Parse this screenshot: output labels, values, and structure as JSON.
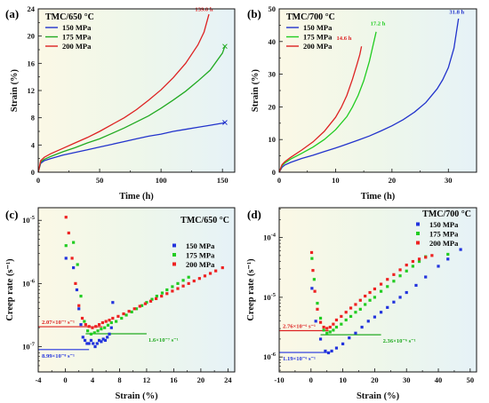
{
  "chart_data": [
    {
      "panel": "(a)",
      "type": "line",
      "title": "TMC/650 °C",
      "xlabel": "Time (h)",
      "ylabel": "Strain (%)",
      "xlim": [
        0,
        160
      ],
      "ylim": [
        0,
        24
      ],
      "xticks": [
        0,
        50,
        100,
        150
      ],
      "yticks": [
        0,
        4,
        8,
        12,
        16,
        20,
        24
      ],
      "legend_position": "top-left",
      "series": [
        {
          "name": "150 MPa",
          "color": "#2233cc",
          "end_marker": "x",
          "x": [
            0,
            2,
            5,
            10,
            20,
            30,
            40,
            50,
            60,
            70,
            80,
            90,
            100,
            110,
            120,
            130,
            140,
            150,
            152
          ],
          "y": [
            0,
            1.3,
            1.7,
            2.0,
            2.5,
            2.9,
            3.3,
            3.7,
            4.1,
            4.5,
            4.9,
            5.3,
            5.6,
            6.0,
            6.3,
            6.6,
            6.9,
            7.2,
            7.3
          ]
        },
        {
          "name": "175 MPa",
          "color": "#22aa22",
          "end_marker": "x",
          "x": [
            0,
            2,
            5,
            10,
            20,
            30,
            40,
            50,
            60,
            70,
            80,
            90,
            100,
            110,
            120,
            130,
            140,
            150,
            152
          ],
          "y": [
            0,
            1.5,
            1.9,
            2.3,
            3.0,
            3.6,
            4.3,
            4.9,
            5.7,
            6.5,
            7.4,
            8.3,
            9.4,
            10.6,
            11.9,
            13.4,
            15.0,
            17.5,
            18.5
          ]
        },
        {
          "name": "200 MPa",
          "color": "#dd2222",
          "end_marker": "none",
          "x": [
            0,
            2,
            5,
            10,
            20,
            30,
            40,
            50,
            60,
            70,
            80,
            90,
            100,
            110,
            120,
            130,
            135,
            139
          ],
          "y": [
            0,
            1.7,
            2.2,
            2.7,
            3.5,
            4.3,
            5.1,
            6.0,
            7.0,
            8.0,
            9.2,
            10.6,
            12.1,
            13.9,
            16.0,
            18.7,
            20.6,
            23.2
          ]
        }
      ],
      "annotations": [
        {
          "text": "139.0 h",
          "color": "#dd2222",
          "x": 135,
          "y": 23.7
        }
      ]
    },
    {
      "panel": "(b)",
      "type": "line",
      "title": "TMC/700 °C",
      "xlabel": "Time (h)",
      "ylabel": "Strain (%)",
      "xlim": [
        0,
        35
      ],
      "ylim": [
        0,
        50
      ],
      "xticks": [
        0,
        10,
        20,
        30
      ],
      "yticks": [
        0,
        10,
        20,
        30,
        40,
        50
      ],
      "legend_position": "top-left",
      "series": [
        {
          "name": "150 MPa",
          "color": "#2233cc",
          "x": [
            0,
            0.5,
            1,
            2,
            4,
            6,
            8,
            10,
            12,
            14,
            16,
            18,
            20,
            22,
            24,
            26,
            28,
            29,
            30,
            31,
            31.8
          ],
          "y": [
            0,
            1.5,
            2.2,
            3.0,
            4.2,
            5.2,
            6.3,
            7.4,
            8.6,
            9.8,
            11.1,
            12.6,
            14.2,
            16.1,
            18.4,
            21.3,
            25.5,
            28.3,
            32.0,
            38.0,
            47.0
          ]
        },
        {
          "name": "175 MPa",
          "color": "#22cc22",
          "x": [
            0,
            0.5,
            1,
            2,
            4,
            6,
            8,
            10,
            12,
            13,
            14,
            15,
            16,
            16.6,
            17.2
          ],
          "y": [
            0,
            2.0,
            2.8,
            4.0,
            5.8,
            7.7,
            10.0,
            13.0,
            17.0,
            20.0,
            23.5,
            28.0,
            34.0,
            38.5,
            43.0
          ]
        },
        {
          "name": "200 MPa",
          "color": "#dd2222",
          "x": [
            0,
            0.5,
            1,
            2,
            4,
            6,
            8,
            10,
            11,
            12,
            13,
            13.8,
            14.3,
            14.6
          ],
          "y": [
            0,
            2.3,
            3.2,
            4.5,
            6.8,
            9.3,
            12.5,
            16.8,
            19.8,
            23.5,
            28.5,
            33.0,
            36.0,
            38.5
          ]
        }
      ],
      "annotations": [
        {
          "text": "14.6 h",
          "color": "#dd2222",
          "x": 11.5,
          "y": 40.5
        },
        {
          "text": "17.2 h",
          "color": "#22cc22",
          "x": 17.5,
          "y": 45.0
        },
        {
          "text": "31.8 h",
          "color": "#2233cc",
          "x": 31.5,
          "y": 48.5
        }
      ]
    },
    {
      "panel": "(c)",
      "type": "scatter",
      "title": "TMC/650 °C",
      "xlabel": "Strain (%)",
      "ylabel": "Creep rate (s⁻¹)",
      "xscale": "linear",
      "yscale": "log",
      "xlim": [
        -4,
        25
      ],
      "ylim_log10": [
        -7.4,
        -4.8
      ],
      "xticks": [
        -4,
        0,
        4,
        8,
        12,
        16,
        20,
        24
      ],
      "yticks_log10": [
        -7,
        -6,
        -5
      ],
      "legend_position": "right-middle",
      "series": [
        {
          "name": "150 MPa",
          "color": "#2233dd",
          "x": [
            0.1,
            1.2,
            1.7,
            2.0,
            2.3,
            2.6,
            2.9,
            3.2,
            3.5,
            3.8,
            4.1,
            4.4,
            4.7,
            5.0,
            5.3,
            5.6,
            5.9,
            6.2,
            6.5,
            6.8,
            7.0
          ],
          "y_log10": [
            -5.6,
            -5.75,
            -6.1,
            -6.4,
            -6.65,
            -6.85,
            -6.9,
            -6.95,
            -6.95,
            -6.9,
            -6.95,
            -7.0,
            -6.95,
            -6.9,
            -6.92,
            -6.88,
            -6.9,
            -6.85,
            -6.8,
            -6.7,
            -6.3
          ]
        },
        {
          "name": "175 MPa",
          "color": "#22cc22",
          "x": [
            0.1,
            1.2,
            1.8,
            2.3,
            2.8,
            3.3,
            3.8,
            4.3,
            4.8,
            5.3,
            5.8,
            6.3,
            6.8,
            7.5,
            8.3,
            9.0,
            9.8,
            10.5,
            11.3,
            12.0,
            12.8,
            13.5,
            14.3,
            15.0,
            15.8,
            16.6,
            17.4,
            18.2
          ],
          "y_log10": [
            -5.4,
            -5.35,
            -5.7,
            -6.2,
            -6.6,
            -6.75,
            -6.8,
            -6.78,
            -6.75,
            -6.72,
            -6.7,
            -6.66,
            -6.62,
            -6.6,
            -6.55,
            -6.5,
            -6.45,
            -6.4,
            -6.35,
            -6.3,
            -6.25,
            -6.2,
            -6.15,
            -6.1,
            -6.05,
            -6.0,
            -5.95,
            -5.9
          ]
        },
        {
          "name": "200 MPa",
          "color": "#ee2222",
          "x": [
            0.1,
            0.5,
            1.0,
            1.5,
            2.0,
            2.5,
            3.0,
            3.5,
            4.0,
            4.5,
            5.0,
            5.5,
            6.0,
            6.5,
            7.0,
            7.8,
            8.6,
            9.4,
            10.2,
            11.0,
            11.8,
            12.6,
            13.4,
            14.2,
            15.0,
            15.8,
            16.6,
            17.4,
            18.2,
            19.0,
            19.8,
            20.6,
            21.4,
            22.2,
            23.2
          ],
          "y_log10": [
            -4.95,
            -5.2,
            -5.6,
            -6.0,
            -6.35,
            -6.55,
            -6.65,
            -6.68,
            -6.7,
            -6.68,
            -6.65,
            -6.62,
            -6.6,
            -6.58,
            -6.55,
            -6.52,
            -6.48,
            -6.44,
            -6.4,
            -6.36,
            -6.32,
            -6.28,
            -6.24,
            -6.2,
            -6.16,
            -6.12,
            -6.08,
            -6.04,
            -6.0,
            -5.96,
            -5.92,
            -5.88,
            -5.84,
            -5.8,
            -5.75
          ]
        }
      ],
      "reference_lines": [
        {
          "text": "2.07×10⁻⁷ s⁻¹",
          "color": "#dd2222",
          "y_log10": -6.684,
          "x_from": -4,
          "x_to": 5.5
        },
        {
          "text": "1.6×10⁻⁷ s⁻¹",
          "color": "#22aa22",
          "y_log10": -6.796,
          "x_from": 3,
          "x_to": 12
        },
        {
          "text": "8.99×10⁻⁸ s⁻¹",
          "color": "#2233dd",
          "y_log10": -7.046,
          "x_from": -4,
          "x_to": 3.5
        }
      ]
    },
    {
      "panel": "(d)",
      "type": "scatter",
      "title": "TMC/700 °C",
      "xlabel": "Strain (%)",
      "ylabel": "Creep rate (s⁻¹)",
      "xscale": "linear",
      "yscale": "log",
      "xlim": [
        -10,
        52
      ],
      "ylim_log10": [
        -6.25,
        -3.5
      ],
      "xticks": [
        -10,
        0,
        10,
        20,
        30,
        40,
        50
      ],
      "yticks_log10": [
        -6,
        -5,
        -4
      ],
      "legend_position": "top-right",
      "series": [
        {
          "name": "150 MPa",
          "color": "#2233dd",
          "x": [
            0.3,
            1.5,
            3.0,
            4.5,
            5.5,
            6.5,
            8,
            10,
            12,
            14,
            16,
            18,
            20,
            22,
            24,
            26,
            28,
            30,
            33,
            36,
            40,
            43,
            47
          ],
          "y_log10": [
            -4.85,
            -5.4,
            -5.7,
            -5.9,
            -5.93,
            -5.9,
            -5.85,
            -5.78,
            -5.68,
            -5.6,
            -5.5,
            -5.4,
            -5.33,
            -5.25,
            -5.17,
            -5.08,
            -5.0,
            -4.92,
            -4.8,
            -4.66,
            -4.48,
            -4.36,
            -4.2
          ]
        },
        {
          "name": "175 MPa",
          "color": "#22cc22",
          "x": [
            0.3,
            1.0,
            2.0,
            3.0,
            4.0,
            5.0,
            6.0,
            7.0,
            8.0,
            9.5,
            11,
            12.5,
            14,
            15.5,
            17,
            18.5,
            20,
            22,
            24,
            26,
            28,
            30,
            32,
            34,
            36,
            43
          ],
          "y_log10": [
            -4.35,
            -4.7,
            -5.1,
            -5.35,
            -5.55,
            -5.6,
            -5.58,
            -5.55,
            -5.5,
            -5.45,
            -5.38,
            -5.32,
            -5.25,
            -5.2,
            -5.12,
            -5.05,
            -5.0,
            -4.9,
            -4.82,
            -4.73,
            -4.64,
            -4.56,
            -4.48,
            -4.4,
            -4.32,
            -4.28
          ]
        },
        {
          "name": "200 MPa",
          "color": "#ee2222",
          "x": [
            0.2,
            0.6,
            1.2,
            2.0,
            3.0,
            4.0,
            5.0,
            6.0,
            7.0,
            8.0,
            9.5,
            11,
            12.5,
            14,
            15.5,
            17,
            18.5,
            20,
            22,
            24,
            26,
            28,
            30,
            32,
            34,
            36,
            38
          ],
          "y_log10": [
            -4.25,
            -4.55,
            -4.9,
            -5.2,
            -5.42,
            -5.5,
            -5.52,
            -5.5,
            -5.45,
            -5.38,
            -5.32,
            -5.25,
            -5.18,
            -5.12,
            -5.05,
            -4.98,
            -4.92,
            -4.86,
            -4.78,
            -4.7,
            -4.62,
            -4.54,
            -4.46,
            -4.4,
            -4.36,
            -4.33,
            -4.3
          ]
        }
      ],
      "reference_lines": [
        {
          "text": "2.76×10⁻⁶ s⁻¹",
          "color": "#dd2222",
          "y_log10": -5.559,
          "x_from": -10,
          "x_to": 5.5
        },
        {
          "text": "2.36×10⁻⁶ s⁻¹",
          "color": "#22aa22",
          "y_log10": -5.627,
          "x_from": 3,
          "x_to": 22
        },
        {
          "text": "1.19×10⁻⁶ s⁻¹",
          "color": "#2233dd",
          "y_log10": -5.924,
          "x_from": -10,
          "x_to": 6
        }
      ]
    }
  ]
}
